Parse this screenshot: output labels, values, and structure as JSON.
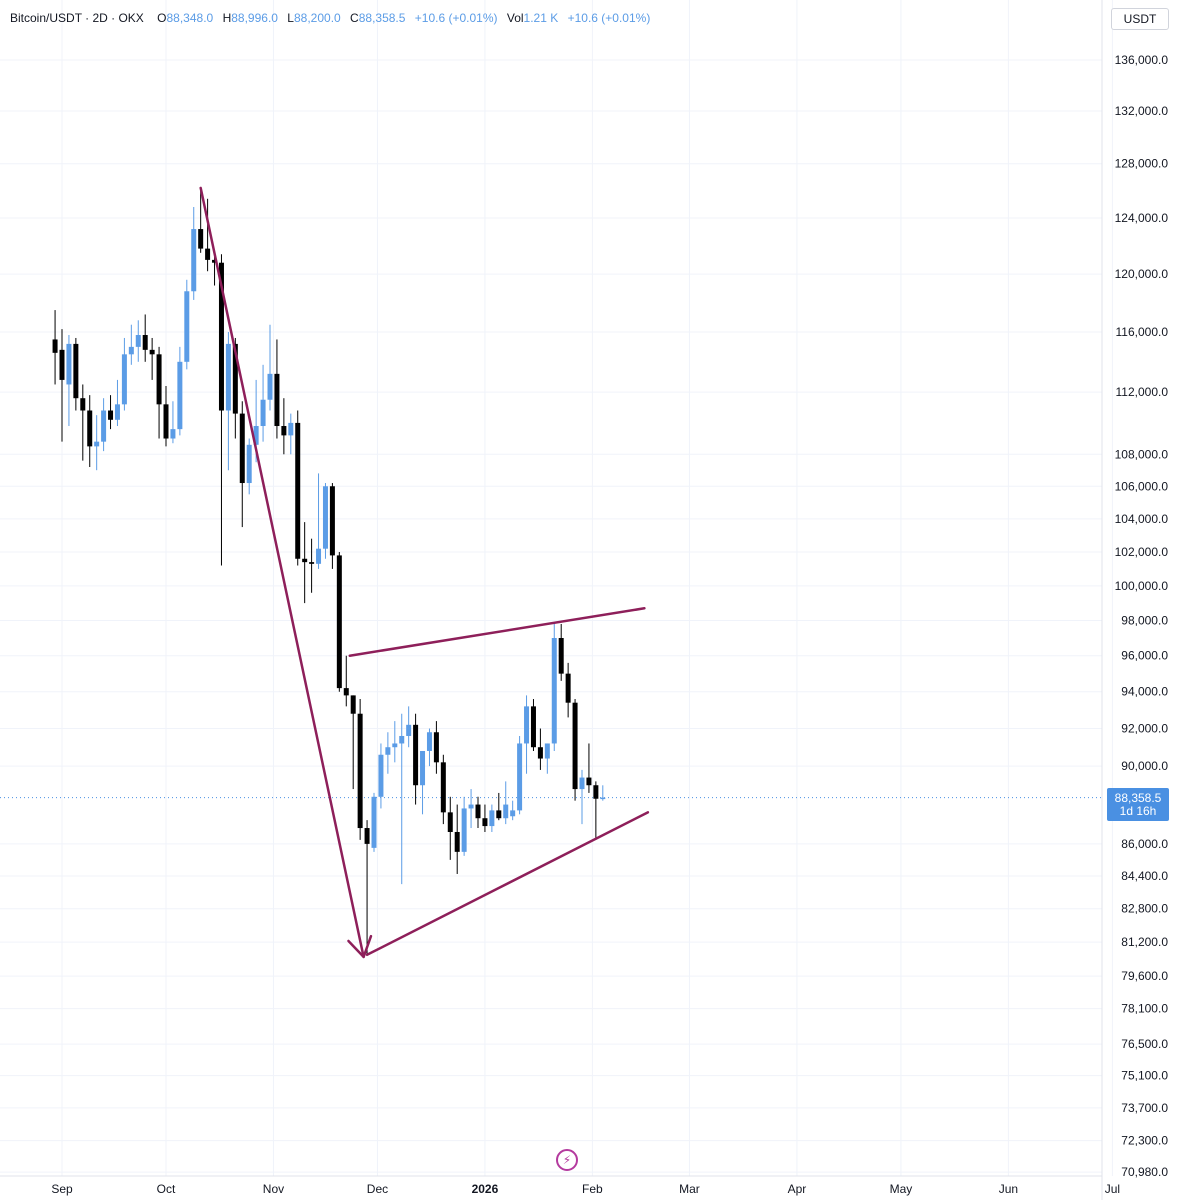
{
  "header": {
    "symbol": "Bitcoin/USDT · 2D · OKX",
    "open_label": "O",
    "open": "88,348.0",
    "high_label": "H",
    "high": "88,996.0",
    "low_label": "L",
    "low": "88,200.0",
    "close_label": "C",
    "close": "88,358.5",
    "change": "+10.6 (+0.01%)",
    "vol_label": "Vol",
    "vol": "1.21 K",
    "vol_change": "+10.6 (+0.01%)"
  },
  "currency_button": "USDT",
  "last_price": {
    "value": "88,358.5",
    "countdown": "1d 16h"
  },
  "colors": {
    "up": "#5b9ce6",
    "down": "#000000",
    "drawing": "#8e1f5a",
    "grid": "#f0f3fa",
    "axis_text": "#131722",
    "price_tag": "#4a90e2"
  },
  "icons": {
    "bolt": "lightning-bolt-icon"
  },
  "chart_data": {
    "type": "candlestick",
    "scale": "log",
    "y_ticks": [
      136000,
      132000,
      128000,
      124000,
      120000,
      116000,
      112000,
      108000,
      106000,
      104000,
      102000,
      100000,
      98000,
      96000,
      94000,
      92000,
      90000,
      86000,
      84400,
      82800,
      81200,
      79600,
      78100,
      76500,
      75100,
      73700,
      72300,
      70980
    ],
    "y_tick_labels": [
      "136,000.0",
      "132,000.0",
      "128,000.0",
      "124,000.0",
      "120,000.0",
      "116,000.0",
      "112,000.0",
      "108,000.0",
      "106,000.0",
      "104,000.0",
      "102,000.0",
      "100,000.0",
      "98,000.0",
      "96,000.0",
      "94,000.0",
      "92,000.0",
      "90,000.0",
      "86,000.0",
      "84,400.0",
      "82,800.0",
      "81,200.0",
      "79,600.0",
      "78,100.0",
      "76,500.0",
      "75,100.0",
      "73,700.0",
      "72,300.0",
      "70,980.0"
    ],
    "x_tick_labels": [
      "Sep",
      "Oct",
      "Nov",
      "Dec",
      "2026",
      "Feb",
      "Mar",
      "Apr",
      "May",
      "Jun",
      "Jul"
    ],
    "x_tick_dates": [
      "2025-09-01",
      "2025-10-01",
      "2025-11-01",
      "2025-12-01",
      "2026-01-01",
      "2026-02-01",
      "2026-03-01",
      "2026-04-01",
      "2026-05-01",
      "2026-06-01",
      "2026-07-01"
    ],
    "last_price": 88358.5,
    "candles": [
      {
        "date": "2025-08-30",
        "open": 115500,
        "high": 117500,
        "low": 112500,
        "close": 114600
      },
      {
        "date": "2025-09-01",
        "open": 114800,
        "high": 116200,
        "low": 108800,
        "close": 112800
      },
      {
        "date": "2025-09-03",
        "open": 112500,
        "high": 115800,
        "low": 109800,
        "close": 115200
      },
      {
        "date": "2025-09-05",
        "open": 115200,
        "high": 115600,
        "low": 110800,
        "close": 111600
      },
      {
        "date": "2025-09-07",
        "open": 111600,
        "high": 112500,
        "low": 107600,
        "close": 110800
      },
      {
        "date": "2025-09-09",
        "open": 110800,
        "high": 111800,
        "low": 107200,
        "close": 108500
      },
      {
        "date": "2025-09-11",
        "open": 108500,
        "high": 110500,
        "low": 107000,
        "close": 108800
      },
      {
        "date": "2025-09-13",
        "open": 108800,
        "high": 111600,
        "low": 108200,
        "close": 110800
      },
      {
        "date": "2025-09-15",
        "open": 110800,
        "high": 111800,
        "low": 109600,
        "close": 110200
      },
      {
        "date": "2025-09-17",
        "open": 110200,
        "high": 112800,
        "low": 109800,
        "close": 111200
      },
      {
        "date": "2025-09-19",
        "open": 111200,
        "high": 115600,
        "low": 110800,
        "close": 114500
      },
      {
        "date": "2025-09-21",
        "open": 114500,
        "high": 116500,
        "low": 113800,
        "close": 115000
      },
      {
        "date": "2025-09-23",
        "open": 115000,
        "high": 116800,
        "low": 114000,
        "close": 115800
      },
      {
        "date": "2025-09-25",
        "open": 115800,
        "high": 117200,
        "low": 114000,
        "close": 114800
      },
      {
        "date": "2025-09-27",
        "open": 114800,
        "high": 115600,
        "low": 112800,
        "close": 114500
      },
      {
        "date": "2025-09-29",
        "open": 114500,
        "high": 115000,
        "low": 109000,
        "close": 111200
      },
      {
        "date": "2025-10-01",
        "open": 111200,
        "high": 112400,
        "low": 108500,
        "close": 109000
      },
      {
        "date": "2025-10-03",
        "open": 109000,
        "high": 111400,
        "low": 108700,
        "close": 109600
      },
      {
        "date": "2025-10-05",
        "open": 109600,
        "high": 115000,
        "low": 109200,
        "close": 114000
      },
      {
        "date": "2025-10-07",
        "open": 114000,
        "high": 119600,
        "low": 113500,
        "close": 118800
      },
      {
        "date": "2025-10-09",
        "open": 118800,
        "high": 124800,
        "low": 118200,
        "close": 123200
      },
      {
        "date": "2025-10-11",
        "open": 123200,
        "high": 126200,
        "low": 121500,
        "close": 121800
      },
      {
        "date": "2025-10-13",
        "open": 121800,
        "high": 125400,
        "low": 120200,
        "close": 121000
      },
      {
        "date": "2025-10-15",
        "open": 121000,
        "high": 121600,
        "low": 119200,
        "close": 120800
      },
      {
        "date": "2025-10-17",
        "open": 120800,
        "high": 121400,
        "low": 101200,
        "close": 110800
      },
      {
        "date": "2025-10-19",
        "open": 110800,
        "high": 116000,
        "low": 107000,
        "close": 115200
      },
      {
        "date": "2025-10-21",
        "open": 115200,
        "high": 115600,
        "low": 109000,
        "close": 110600
      },
      {
        "date": "2025-10-23",
        "open": 110600,
        "high": 111400,
        "low": 103500,
        "close": 106200
      },
      {
        "date": "2025-10-25",
        "open": 106200,
        "high": 109000,
        "low": 105500,
        "close": 108600
      },
      {
        "date": "2025-10-27",
        "open": 108600,
        "high": 112800,
        "low": 107500,
        "close": 109800
      },
      {
        "date": "2025-10-29",
        "open": 109800,
        "high": 113800,
        "low": 108800,
        "close": 111500
      },
      {
        "date": "2025-10-31",
        "open": 111500,
        "high": 116500,
        "low": 110800,
        "close": 113200
      },
      {
        "date": "2025-11-02",
        "open": 113200,
        "high": 115500,
        "low": 109000,
        "close": 109800
      },
      {
        "date": "2025-11-04",
        "open": 109800,
        "high": 111600,
        "low": 108000,
        "close": 109200
      },
      {
        "date": "2025-11-06",
        "open": 109200,
        "high": 110600,
        "low": 108000,
        "close": 110000
      },
      {
        "date": "2025-11-08",
        "open": 110000,
        "high": 110800,
        "low": 101200,
        "close": 101600
      },
      {
        "date": "2025-11-10",
        "open": 101600,
        "high": 103800,
        "low": 99000,
        "close": 101400
      },
      {
        "date": "2025-11-12",
        "open": 101400,
        "high": 102800,
        "low": 99600,
        "close": 101300
      },
      {
        "date": "2025-11-14",
        "open": 101300,
        "high": 106800,
        "low": 101000,
        "close": 102200
      },
      {
        "date": "2025-11-16",
        "open": 102200,
        "high": 106200,
        "low": 101600,
        "close": 106000
      },
      {
        "date": "2025-11-18",
        "open": 106000,
        "high": 106200,
        "low": 101000,
        "close": 101800
      },
      {
        "date": "2025-11-20",
        "open": 101800,
        "high": 102000,
        "low": 94000,
        "close": 94200
      },
      {
        "date": "2025-11-22",
        "open": 94200,
        "high": 96000,
        "low": 93200,
        "close": 93800
      },
      {
        "date": "2025-11-24",
        "open": 93800,
        "high": 93800,
        "low": 88800,
        "close": 92800
      },
      {
        "date": "2025-11-26",
        "open": 92800,
        "high": 93600,
        "low": 86200,
        "close": 86800
      },
      {
        "date": "2025-11-28",
        "open": 86800,
        "high": 87200,
        "low": 80600,
        "close": 86000
      },
      {
        "date": "2025-11-30",
        "open": 85800,
        "high": 88600,
        "low": 85600,
        "close": 88400
      },
      {
        "date": "2025-12-02",
        "open": 88400,
        "high": 91200,
        "low": 87800,
        "close": 90600
      },
      {
        "date": "2025-12-04",
        "open": 90600,
        "high": 91800,
        "low": 89600,
        "close": 91000
      },
      {
        "date": "2025-12-06",
        "open": 91000,
        "high": 92400,
        "low": 90200,
        "close": 91200
      },
      {
        "date": "2025-12-08",
        "open": 91200,
        "high": 92800,
        "low": 84000,
        "close": 91600
      },
      {
        "date": "2025-12-10",
        "open": 91600,
        "high": 93200,
        "low": 91000,
        "close": 92200
      },
      {
        "date": "2025-12-12",
        "open": 92200,
        "high": 92800,
        "low": 88000,
        "close": 89000
      },
      {
        "date": "2025-12-14",
        "open": 89000,
        "high": 90800,
        "low": 87500,
        "close": 90800
      },
      {
        "date": "2025-12-16",
        "open": 90800,
        "high": 92000,
        "low": 90000,
        "close": 91800
      },
      {
        "date": "2025-12-18",
        "open": 91800,
        "high": 92400,
        "low": 89600,
        "close": 90200
      },
      {
        "date": "2025-12-20",
        "open": 90200,
        "high": 90600,
        "low": 87000,
        "close": 87600
      },
      {
        "date": "2025-12-22",
        "open": 87600,
        "high": 88400,
        "low": 85200,
        "close": 86600
      },
      {
        "date": "2025-12-24",
        "open": 86600,
        "high": 88000,
        "low": 84500,
        "close": 85600
      },
      {
        "date": "2025-12-26",
        "open": 85600,
        "high": 88400,
        "low": 85400,
        "close": 87800
      },
      {
        "date": "2025-12-28",
        "open": 87800,
        "high": 88800,
        "low": 86800,
        "close": 88000
      },
      {
        "date": "2025-12-30",
        "open": 88000,
        "high": 88400,
        "low": 86800,
        "close": 87300
      },
      {
        "date": "2026-01-01",
        "open": 87300,
        "high": 88000,
        "low": 86600,
        "close": 86900
      },
      {
        "date": "2026-01-03",
        "open": 86900,
        "high": 88000,
        "low": 86600,
        "close": 87700
      },
      {
        "date": "2026-01-05",
        "open": 87700,
        "high": 88600,
        "low": 87200,
        "close": 87300
      },
      {
        "date": "2026-01-07",
        "open": 87300,
        "high": 89200,
        "low": 87000,
        "close": 88000
      },
      {
        "date": "2026-01-09",
        "open": 87400,
        "high": 88200,
        "low": 87200,
        "close": 87700
      },
      {
        "date": "2026-01-11",
        "open": 87700,
        "high": 91600,
        "low": 87500,
        "close": 91200
      },
      {
        "date": "2026-01-13",
        "open": 91200,
        "high": 93800,
        "low": 89600,
        "close": 93200
      },
      {
        "date": "2026-01-15",
        "open": 93200,
        "high": 93600,
        "low": 90800,
        "close": 91000
      },
      {
        "date": "2026-01-17",
        "open": 91000,
        "high": 92000,
        "low": 89800,
        "close": 90400
      },
      {
        "date": "2026-01-19",
        "open": 90400,
        "high": 91200,
        "low": 89600,
        "close": 91200
      },
      {
        "date": "2026-01-21",
        "open": 91200,
        "high": 97800,
        "low": 90800,
        "close": 97000
      },
      {
        "date": "2026-01-23",
        "open": 97000,
        "high": 97800,
        "low": 94600,
        "close": 95000
      },
      {
        "date": "2026-01-25",
        "open": 95000,
        "high": 95600,
        "low": 92600,
        "close": 93400
      },
      {
        "date": "2026-01-27",
        "open": 93400,
        "high": 93600,
        "low": 88200,
        "close": 88800
      },
      {
        "date": "2026-01-29",
        "open": 88800,
        "high": 89800,
        "low": 87000,
        "close": 89400
      },
      {
        "date": "2026-01-31",
        "open": 89400,
        "high": 91200,
        "low": 88600,
        "close": 89000
      },
      {
        "date": "2026-02-02",
        "open": 89000,
        "high": 89200,
        "low": 86200,
        "close": 88300
      },
      {
        "date": "2026-02-04",
        "open": 88348,
        "high": 88996,
        "low": 88200,
        "close": 88358.5
      }
    ],
    "drawings": [
      {
        "type": "arrow",
        "points": [
          {
            "date": "2025-10-11",
            "price": 126200
          },
          {
            "date": "2025-11-27",
            "price": 80500
          }
        ]
      },
      {
        "type": "trendline",
        "points": [
          {
            "date": "2025-11-23",
            "price": 96000
          },
          {
            "date": "2026-02-16",
            "price": 98700
          }
        ]
      },
      {
        "type": "trendline",
        "points": [
          {
            "date": "2025-11-28",
            "price": 80600
          },
          {
            "date": "2026-02-17",
            "price": 87600
          }
        ]
      }
    ]
  }
}
